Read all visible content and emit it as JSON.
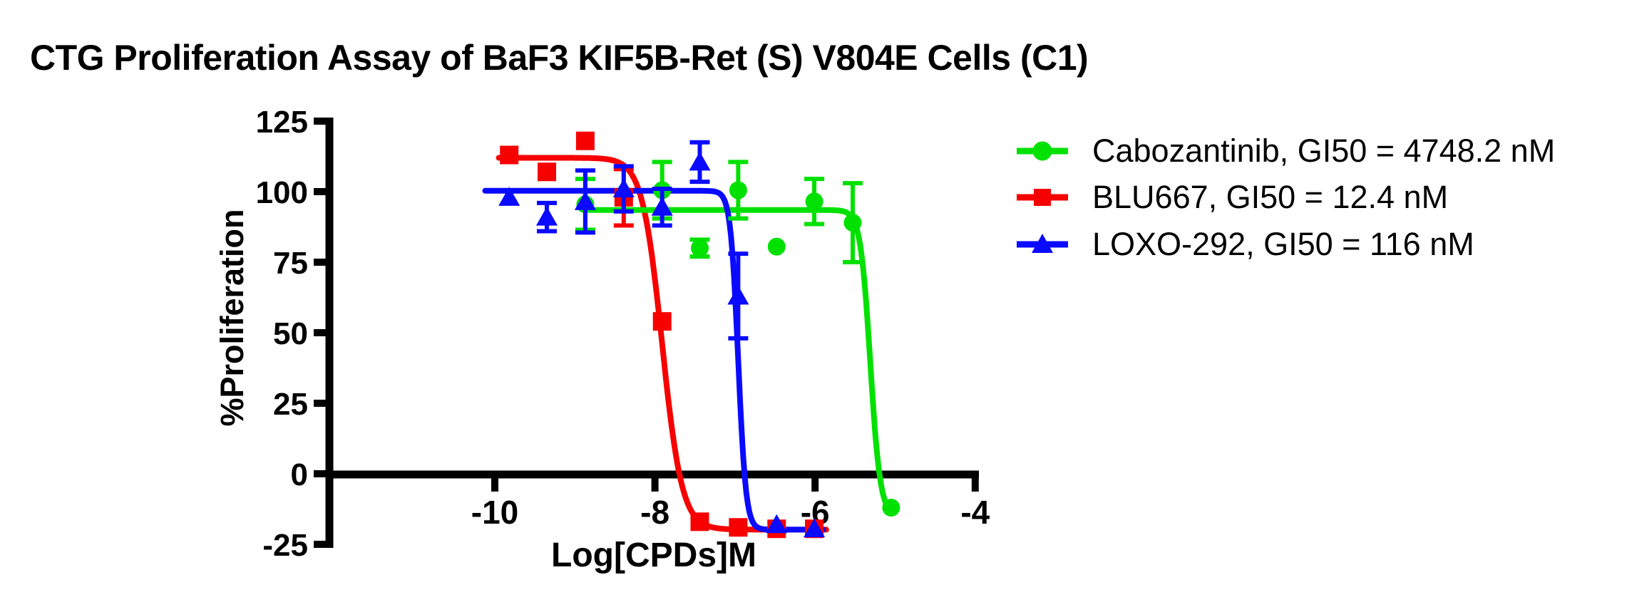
{
  "page": {
    "background": "#ffffff"
  },
  "chart_data": {
    "type": "line",
    "title": "CTG Proliferation Assay of BaF3 KIF5B-Ret (S) V804E Cells (C1)",
    "xlabel": "Log[CPDs]M",
    "ylabel": "%Proliferation",
    "x_ticks": [
      -10,
      -8,
      -6,
      -4
    ],
    "y_ticks": [
      125,
      100,
      75,
      50,
      25,
      0,
      -25
    ],
    "xlim": [
      -12.0,
      -3.9
    ],
    "ylim": [
      -25,
      125
    ],
    "grid": false,
    "legend_position": "right-outside",
    "axis_color": "#000000",
    "series": [
      {
        "name": "Cabozantinib",
        "legend_label": "Cabozantinib, GI50 = 4748.2 nM",
        "gi50_nM": 4748.2,
        "color": "#00e100",
        "marker": "circle",
        "points": [
          {
            "x": -8.87,
            "y": 95.5,
            "err": 9
          },
          {
            "x": -8.39,
            "y": 99,
            "err": 0
          },
          {
            "x": -7.91,
            "y": 100.5,
            "err": 10
          },
          {
            "x": -7.44,
            "y": 80,
            "err": 3
          },
          {
            "x": -6.96,
            "y": 100.5,
            "err": 10
          },
          {
            "x": -6.48,
            "y": 80.5,
            "err": 0
          },
          {
            "x": -6.01,
            "y": 96.5,
            "err": 8
          },
          {
            "x": -5.53,
            "y": 89,
            "err": 14
          },
          {
            "x": -5.05,
            "y": -12,
            "err": 0
          }
        ],
        "fit": {
          "top": 93.5,
          "bottom": -15,
          "log_gi50": -5.31,
          "hill": 7,
          "x_start": -8.82,
          "x_end": -5.02
        }
      },
      {
        "name": "BLU667",
        "legend_label": "BLU667, GI50 = 12.4 nM",
        "gi50_nM": 12.4,
        "color": "#f60000",
        "marker": "square",
        "points": [
          {
            "x": -9.82,
            "y": 113,
            "err": 0
          },
          {
            "x": -9.35,
            "y": 107,
            "err": 0
          },
          {
            "x": -8.87,
            "y": 118,
            "err": 0
          },
          {
            "x": -8.39,
            "y": 98,
            "err": 10
          },
          {
            "x": -7.91,
            "y": 54,
            "err": 0
          },
          {
            "x": -7.44,
            "y": -17,
            "err": 0
          },
          {
            "x": -6.96,
            "y": -19,
            "err": 0
          },
          {
            "x": -6.48,
            "y": -19.5,
            "err": 0
          },
          {
            "x": -6.01,
            "y": -19.5,
            "err": 0
          }
        ],
        "fit": {
          "top": 112,
          "bottom": -19.8,
          "log_gi50": -7.91,
          "hill": 3.5,
          "x_start": -9.95,
          "x_end": -5.86
        }
      },
      {
        "name": "LOXO-292",
        "legend_label": "LOXO-292, GI50 = 116 nM",
        "gi50_nM": 116,
        "color": "#0a0aff",
        "marker": "triangle",
        "points": [
          {
            "x": -9.82,
            "y": 98,
            "err": 0
          },
          {
            "x": -9.35,
            "y": 91,
            "err": 5
          },
          {
            "x": -8.87,
            "y": 96.5,
            "err": 11
          },
          {
            "x": -8.39,
            "y": 101,
            "err": 8
          },
          {
            "x": -7.91,
            "y": 94.5,
            "err": 6.5
          },
          {
            "x": -7.44,
            "y": 110.5,
            "err": 7
          },
          {
            "x": -6.96,
            "y": 63,
            "err": 15
          },
          {
            "x": -6.48,
            "y": -18,
            "err": 0
          },
          {
            "x": -6.01,
            "y": -19.5,
            "err": 0
          }
        ],
        "fit": {
          "top": 100.3,
          "bottom": -19.8,
          "log_gi50": -6.96,
          "hill": 9,
          "x_start": -10.12,
          "x_end": -5.9
        }
      }
    ]
  }
}
